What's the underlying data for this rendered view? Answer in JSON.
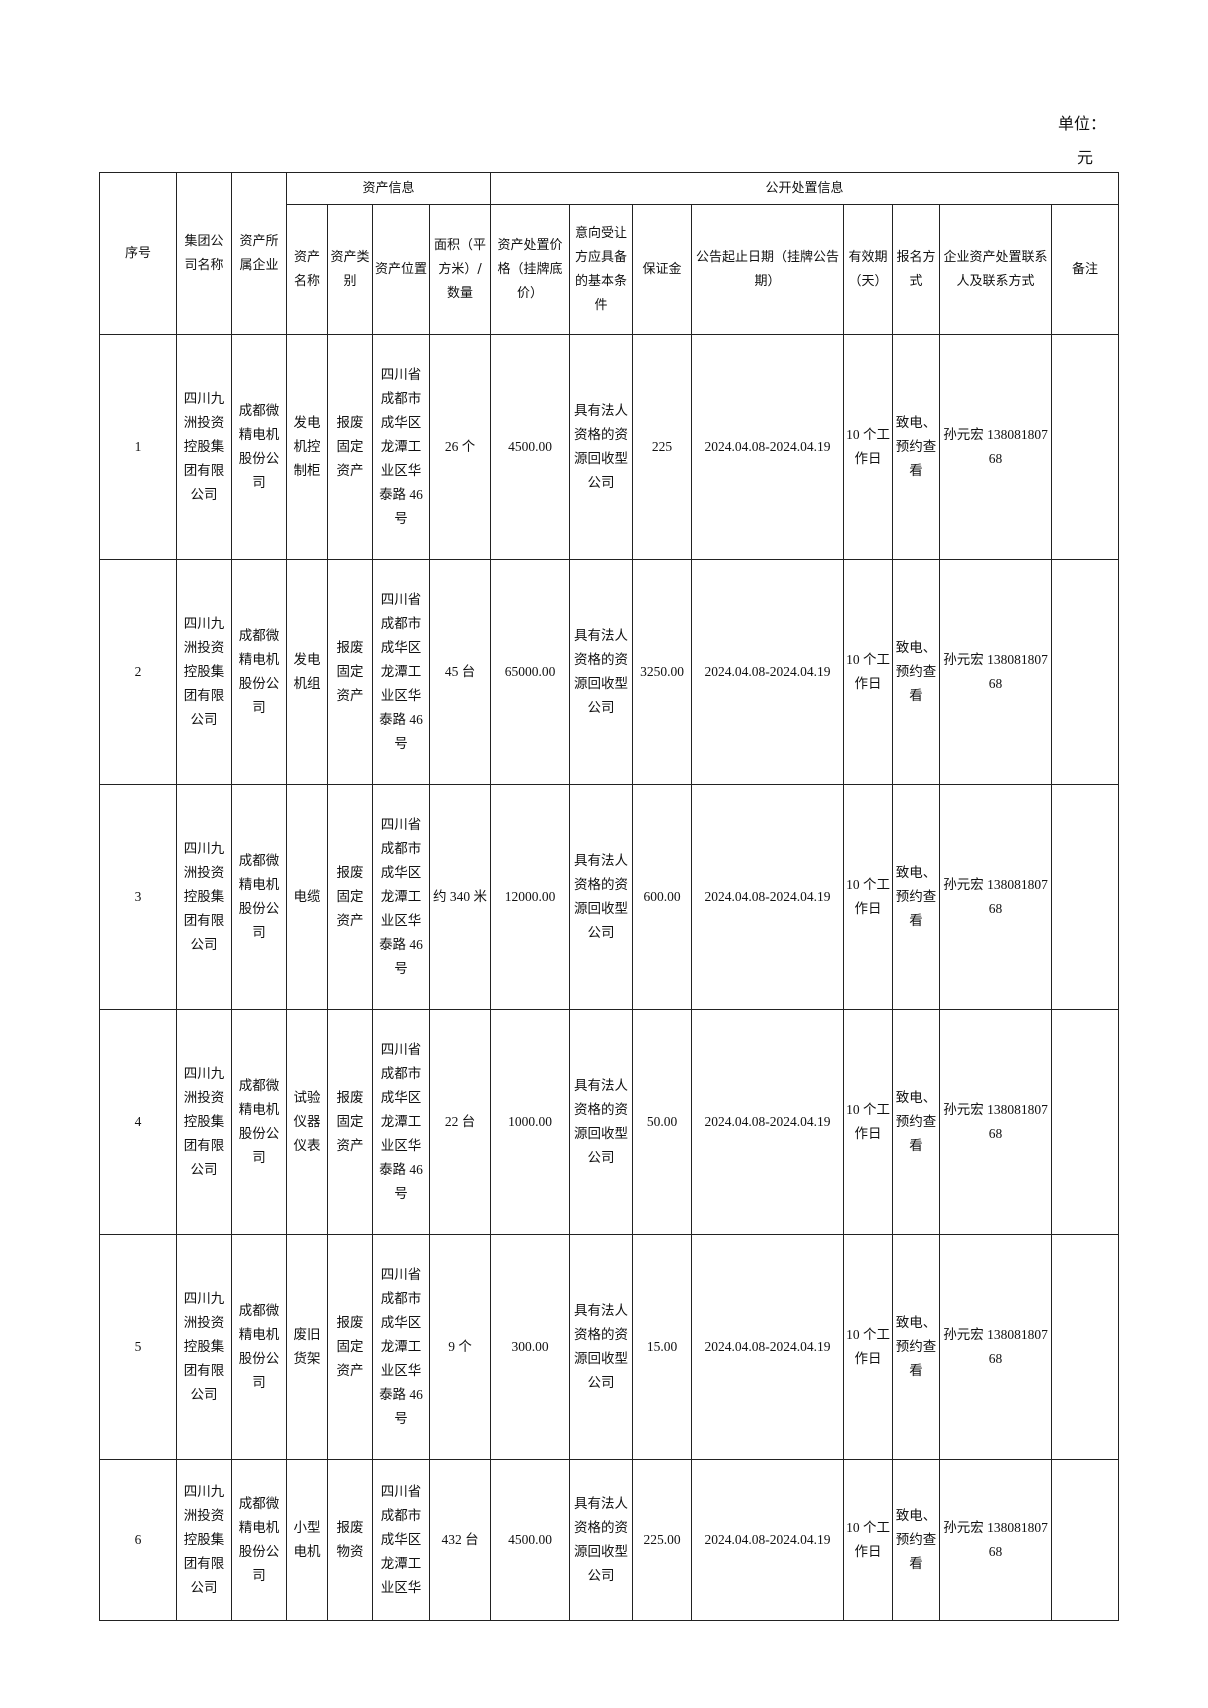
{
  "header": {
    "unit_label": "单位：",
    "unit": "元"
  },
  "table": {
    "groups": [
      "资产信息",
      "公开处置信息"
    ],
    "columns": [
      "序号",
      "集团公司名称",
      "资产所属企业",
      "资产名称",
      "资产类别",
      "资产位置",
      "面积（平方米）/数量",
      "资产处置价格（挂牌底价）",
      "意向受让方应具备的基本条件",
      "保证金",
      "公告起止日期（挂牌公告期）",
      "有效期（天）",
      "报名方式",
      "企业资产处置联系人及联系方式",
      "备注"
    ],
    "rows": [
      [
        "1",
        "四川九洲投资控股集团有限公司",
        "成都微精电机股份公司",
        "发电机控制柜",
        "报废固定资产",
        "四川省成都市成华区龙潭工业区华泰路 46 号",
        "26 个",
        "4500.00",
        "具有法人资格的资源回收型公司",
        "225",
        "2024.04.08-2024.04.19",
        "10 个工作日",
        "致电、预约查看",
        "孙元宏 13808180768"
      ],
      [
        "2",
        "四川九洲投资控股集团有限公司",
        "成都微精电机股份公司",
        "发电机组",
        "报废固定资产",
        "四川省成都市成华区龙潭工业区华泰路 46 号",
        "45 台",
        "65000.00",
        "具有法人资格的资源回收型公司",
        "3250.00",
        "2024.04.08-2024.04.19",
        "10 个工作日",
        "致电、预约查看",
        "孙元宏 13808180768"
      ],
      [
        "3",
        "四川九洲投资控股集团有限公司",
        "成都微精电机股份公司",
        "电缆",
        "报废固定资产",
        "四川省成都市成华区龙潭工业区华泰路 46 号",
        "约 340 米",
        "12000.00",
        "具有法人资格的资源回收型公司",
        "600.00",
        "2024.04.08-2024.04.19",
        "10 个工作日",
        "致电、预约查看",
        "孙元宏 13808180768"
      ],
      [
        "4",
        "四川九洲投资控股集团有限公司",
        "成都微精电机股份公司",
        "试验仪器仪表",
        "报废固定资产",
        "四川省成都市成华区龙潭工业区华泰路 46 号",
        "22 台",
        "1000.00",
        "具有法人资格的资源回收型公司",
        "50.00",
        "2024.04.08-2024.04.19",
        "10 个工作日",
        "致电、预约查看",
        "孙元宏 13808180768"
      ],
      [
        "5",
        "四川九洲投资控股集团有限公司",
        "成都微精电机股份公司",
        "废旧货架",
        "报废固定资产",
        "四川省成都市成华区龙潭工业区华泰路 46 号",
        "9 个",
        "300.00",
        "具有法人资格的资源回收型公司",
        "15.00",
        "2024.04.08-2024.04.19",
        "10 个工作日",
        "致电、预约查看",
        "孙元宏 13808180768"
      ],
      [
        "6",
        "四川九洲投资控股集团有限公司",
        "成都微精电机股份公司",
        "小型电机",
        "报废物资",
        "四川省成都市成华区龙潭工业区华",
        "432 台",
        "4500.00",
        "具有法人资格的资源回收型公司",
        "225.00",
        "2024.04.08-2024.04.19",
        "10 个工作日",
        "致电、预约查看",
        "孙元宏 13808180768"
      ]
    ]
  }
}
